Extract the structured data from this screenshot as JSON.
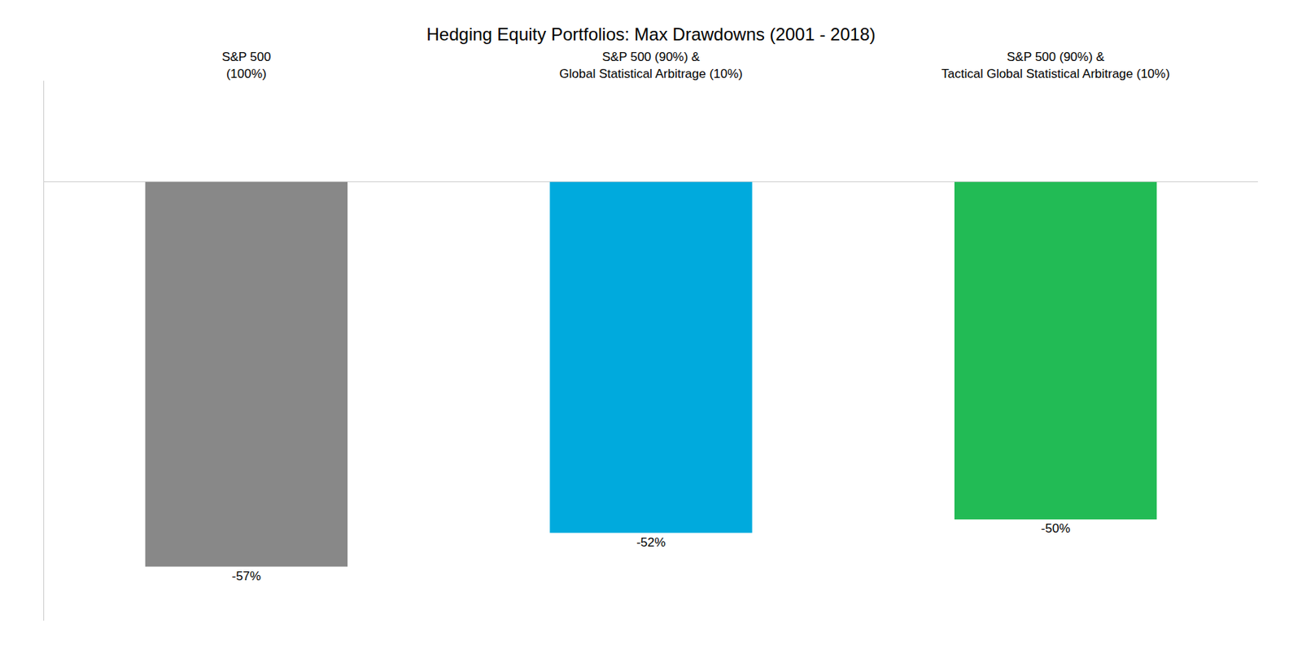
{
  "chart_data": {
    "type": "bar",
    "title": "Hedging Equity Portfolios: Max Drawdowns (2001 - 2018)",
    "categories": [
      "S&P 500\n(100%)",
      "S&P 500 (90%) &\nGlobal Statistical Arbitrage (10%)",
      "S&P 500 (90%) &\nTactical Global Statistical Arbitrage (10%)"
    ],
    "values": [
      -57,
      -52,
      -50
    ],
    "value_labels": [
      "-57%",
      "-52%",
      "-50%"
    ],
    "colors": [
      "#888888",
      "#00AADD",
      "#22BB55"
    ],
    "ylim": [
      -65,
      15
    ],
    "grid": false,
    "data_labels": true,
    "tick_labels": "x"
  }
}
